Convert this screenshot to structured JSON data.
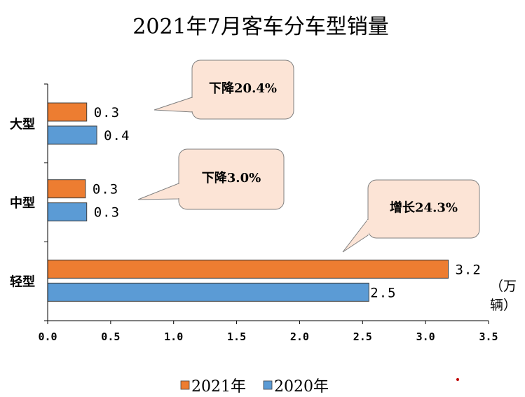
{
  "chart_data": {
    "type": "bar",
    "orientation": "horizontal",
    "title": "2021年7月客车分车型销量",
    "unit": "（万辆）",
    "categories": [
      "大型",
      "中型",
      "轻型"
    ],
    "series": [
      {
        "name": "2021年",
        "color": "#ED7D31",
        "values": [
          0.3,
          0.3,
          3.2
        ],
        "labels": [
          "0.3",
          "0.3",
          "3.2"
        ]
      },
      {
        "name": "2020年",
        "color": "#5B9BD5",
        "values": [
          0.4,
          0.3,
          2.5
        ],
        "labels": [
          "0.4",
          "0.3",
          "2.5"
        ]
      }
    ],
    "plot_values": {
      "2021年": [
        0.31,
        0.3,
        3.18
      ],
      "2020年": [
        0.39,
        0.31,
        2.55
      ]
    },
    "xlim": [
      0,
      3.5
    ],
    "xticks": [
      "0.0",
      "0.5",
      "1.0",
      "1.5",
      "2.0",
      "2.5",
      "3.0",
      "3.5"
    ],
    "grid": false,
    "legend_position": "bottom",
    "annotations": [
      {
        "category": "大型",
        "text": "下降20.4%"
      },
      {
        "category": "中型",
        "text": "下降3.0%"
      },
      {
        "category": "轻型",
        "text": "增长24.3%"
      }
    ]
  }
}
